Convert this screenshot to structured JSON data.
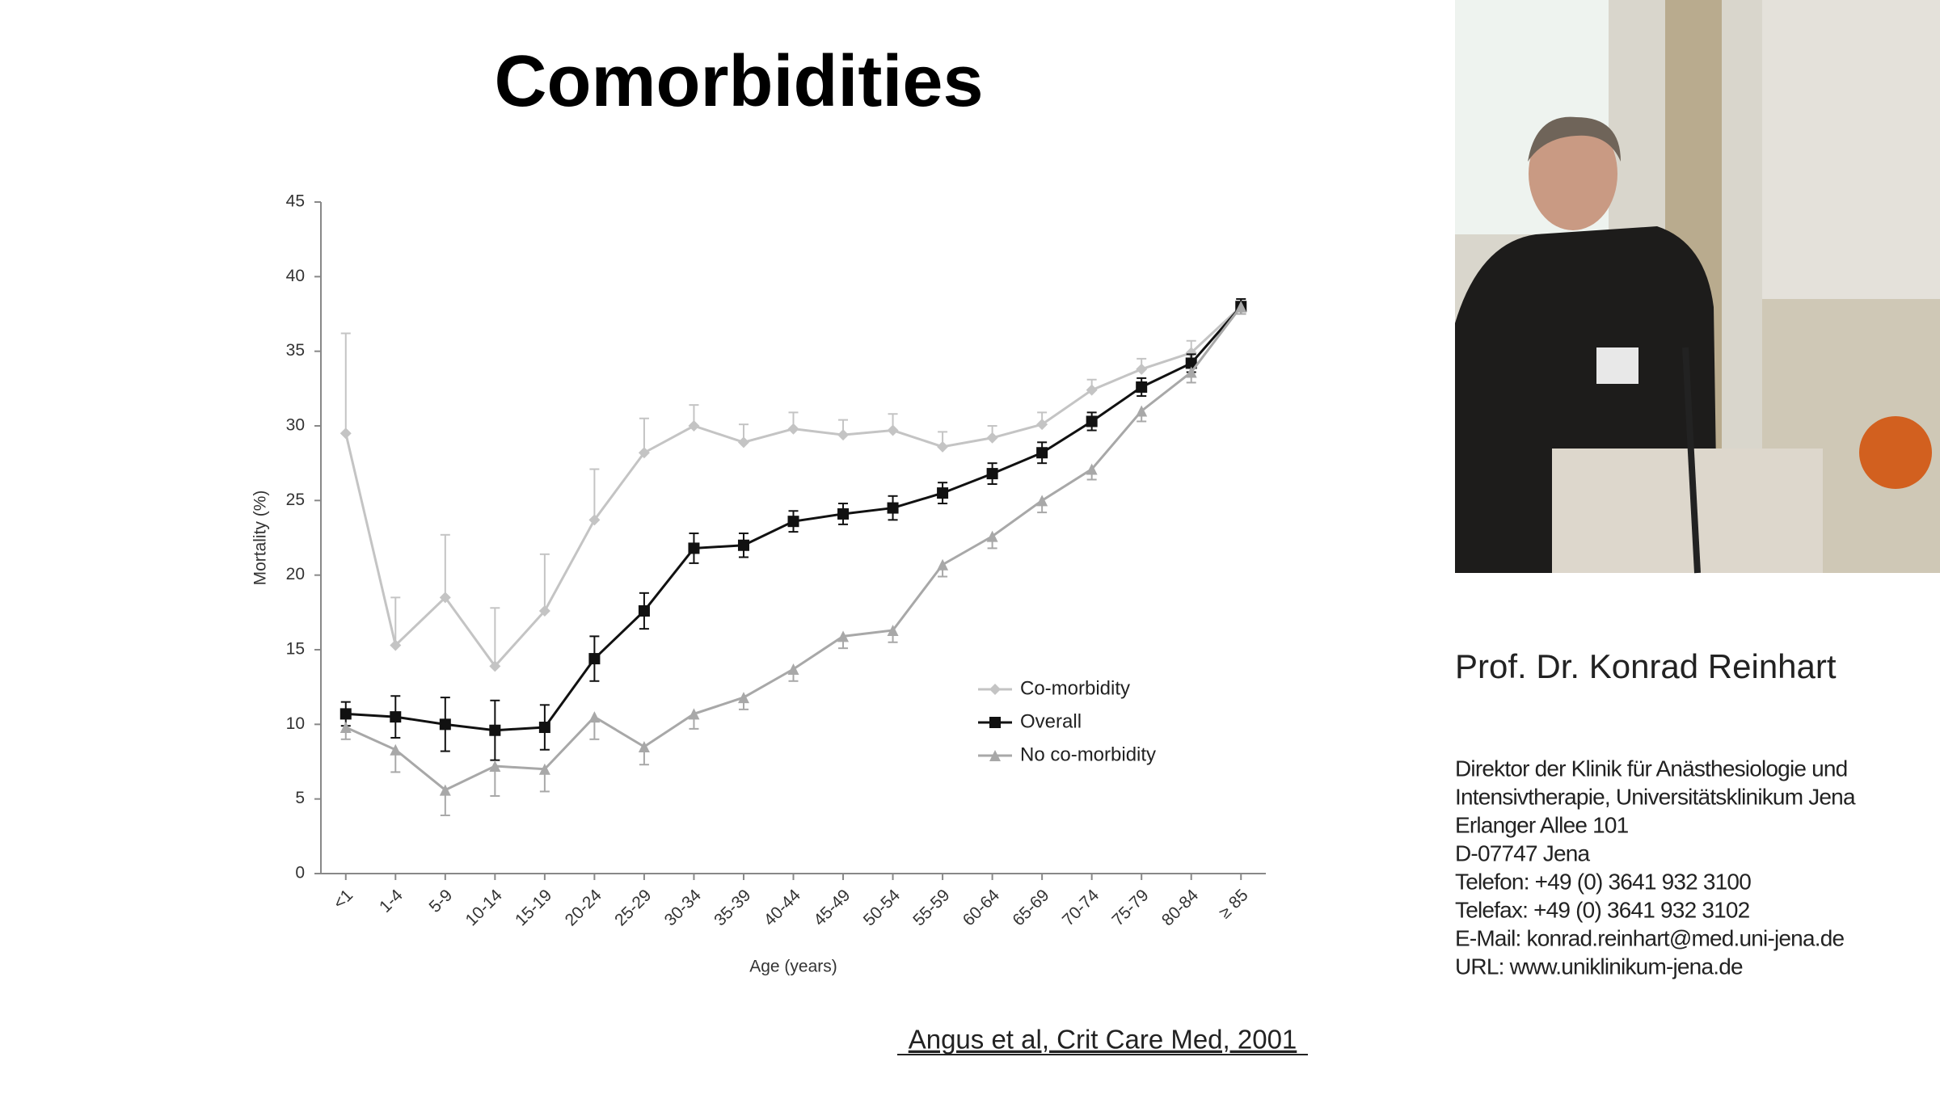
{
  "chart_data": {
    "type": "line",
    "title": "Comorbidities",
    "categories": [
      "<1",
      "1-4",
      "5-9",
      "10-14",
      "15-19",
      "20-24",
      "25-29",
      "30-34",
      "35-39",
      "40-44",
      "45-49",
      "50-54",
      "55-59",
      "60-64",
      "65-69",
      "70-74",
      "75-79",
      "80-84",
      "≥ 85"
    ],
    "x_label": "Age (years)",
    "y_label": "Mortality (%)",
    "ylim": [
      0,
      45
    ],
    "yticks": [
      0,
      5,
      10,
      15,
      20,
      25,
      30,
      35,
      40,
      45
    ],
    "grid": false,
    "legend": "right",
    "series": [
      {
        "name": "Co-morbidity",
        "color": "#c4c4c4",
        "marker": "diamond",
        "error_bars": "up",
        "values": [
          29.5,
          15.3,
          18.5,
          13.9,
          17.6,
          23.7,
          28.2,
          30.0,
          28.9,
          29.8,
          29.4,
          29.7,
          28.6,
          29.2,
          30.1,
          32.4,
          33.8,
          34.9,
          38.0
        ],
        "errors": [
          6.7,
          3.2,
          4.2,
          3.9,
          3.8,
          3.4,
          2.3,
          1.4,
          1.2,
          1.1,
          1.0,
          1.1,
          1.0,
          0.8,
          0.8,
          0.7,
          0.7,
          0.8,
          0.5
        ]
      },
      {
        "name": "Overall",
        "color": "#111111",
        "marker": "square",
        "error_bars": "both",
        "values": [
          10.7,
          10.5,
          10.0,
          9.6,
          9.8,
          14.4,
          17.6,
          21.8,
          22.0,
          23.6,
          24.1,
          24.5,
          25.5,
          26.8,
          28.2,
          30.3,
          32.6,
          34.2,
          38.0
        ],
        "errors": [
          0.8,
          1.4,
          1.8,
          2.0,
          1.5,
          1.5,
          1.2,
          1.0,
          0.8,
          0.7,
          0.7,
          0.8,
          0.7,
          0.7,
          0.7,
          0.6,
          0.6,
          0.6,
          0.5
        ]
      },
      {
        "name": "No co-morbidity",
        "color": "#a8a8a8",
        "marker": "triangle",
        "error_bars": "down",
        "values": [
          9.8,
          8.3,
          5.6,
          7.2,
          7.0,
          10.5,
          8.5,
          10.7,
          11.8,
          13.7,
          15.9,
          16.3,
          20.7,
          22.6,
          25.0,
          27.1,
          31.0,
          33.6,
          38.0
        ],
        "errors": [
          0.8,
          1.5,
          1.7,
          2.0,
          1.5,
          1.5,
          1.2,
          1.0,
          0.8,
          0.8,
          0.8,
          0.8,
          0.8,
          0.8,
          0.8,
          0.7,
          0.7,
          0.7,
          0.5
        ]
      }
    ],
    "source": "Angus et al, Crit Care Med, 2001"
  },
  "speaker": {
    "name": "Prof. Dr. Konrad Reinhart",
    "lines": [
      "Direktor der Klinik für Anästhesiologie und",
      "Intensivtherapie, Universitätsklinikum Jena",
      "Erlanger Allee 101",
      "D-07747 Jena",
      "Telefon: +49 (0) 3641 932 3100",
      "Telefax: +49 (0) 3641 932 3102",
      "E-Mail: konrad.reinhart@med.uni-jena.de",
      "URL: www.uniklinikum-jena.de"
    ]
  }
}
